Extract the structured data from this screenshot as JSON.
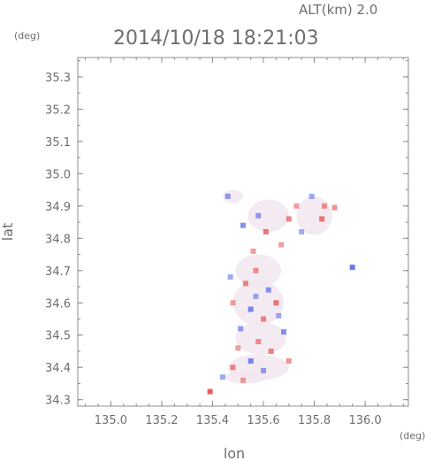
{
  "header": {
    "altitude_label": "ALT(km) 2.0",
    "timestamp": "2014/10/18 18:21:03"
  },
  "chart_data": {
    "type": "heatmap",
    "title": "2014/10/18 18:21:03",
    "xlabel": "lon",
    "ylabel": "lat",
    "x_unit": "(deg)",
    "y_unit": "(deg)",
    "xlim": [
      134.87,
      136.17
    ],
    "ylim": [
      34.28,
      35.36
    ],
    "x_ticks": [
      135.0,
      135.2,
      135.4,
      135.6,
      135.8,
      136.0
    ],
    "x_tick_labels": [
      "135.0",
      "135.2",
      "135.4",
      "135.6",
      "135.8",
      "136.0"
    ],
    "y_ticks": [
      34.3,
      34.4,
      34.5,
      34.6,
      34.7,
      34.8,
      34.9,
      35.0,
      35.1,
      35.2,
      35.3
    ],
    "y_tick_labels": [
      "34.3",
      "34.4",
      "34.5",
      "34.6",
      "34.7",
      "34.8",
      "34.9",
      "35.0",
      "35.1",
      "35.2",
      "35.3"
    ],
    "grid": false,
    "colors": {
      "positive": "#e84848",
      "negative": "#4a5ee8",
      "near_zero": "#f2e8f0",
      "frame": "#8c8c8c",
      "text": "#6e6e6e"
    },
    "series": [
      {
        "points": [
          {
            "lon": 135.39,
            "lat": 34.325,
            "v": 0.9
          },
          {
            "lon": 135.95,
            "lat": 34.71,
            "v": -0.8
          },
          {
            "lon": 135.83,
            "lat": 34.86,
            "v": 0.7
          },
          {
            "lon": 135.7,
            "lat": 34.86,
            "v": 0.6
          },
          {
            "lon": 135.61,
            "lat": 34.82,
            "v": 0.7
          },
          {
            "lon": 135.88,
            "lat": 34.895,
            "v": 0.5
          },
          {
            "lon": 135.46,
            "lat": 34.93,
            "v": -0.5
          },
          {
            "lon": 135.52,
            "lat": 34.84,
            "v": -0.6
          },
          {
            "lon": 135.58,
            "lat": 34.87,
            "v": -0.5
          },
          {
            "lon": 135.75,
            "lat": 34.82,
            "v": -0.4
          },
          {
            "lon": 135.73,
            "lat": 34.9,
            "v": 0.4
          },
          {
            "lon": 135.53,
            "lat": 34.66,
            "v": 0.6
          },
          {
            "lon": 135.57,
            "lat": 34.7,
            "v": 0.5
          },
          {
            "lon": 135.62,
            "lat": 34.64,
            "v": -0.6
          },
          {
            "lon": 135.48,
            "lat": 34.6,
            "v": 0.4
          },
          {
            "lon": 135.55,
            "lat": 34.58,
            "v": -0.7
          },
          {
            "lon": 135.65,
            "lat": 34.6,
            "v": 0.7
          },
          {
            "lon": 135.6,
            "lat": 34.55,
            "v": 0.6
          },
          {
            "lon": 135.51,
            "lat": 34.52,
            "v": -0.5
          },
          {
            "lon": 135.58,
            "lat": 34.48,
            "v": 0.5
          },
          {
            "lon": 135.68,
            "lat": 34.51,
            "v": -0.6
          },
          {
            "lon": 135.63,
            "lat": 34.45,
            "v": 0.6
          },
          {
            "lon": 135.55,
            "lat": 34.42,
            "v": -0.7
          },
          {
            "lon": 135.48,
            "lat": 34.4,
            "v": 0.6
          },
          {
            "lon": 135.6,
            "lat": 34.39,
            "v": -0.5
          },
          {
            "lon": 135.7,
            "lat": 34.42,
            "v": 0.5
          },
          {
            "lon": 135.44,
            "lat": 34.37,
            "v": -0.4
          },
          {
            "lon": 135.52,
            "lat": 34.36,
            "v": 0.4
          },
          {
            "lon": 135.66,
            "lat": 34.56,
            "v": -0.4
          },
          {
            "lon": 135.47,
            "lat": 34.68,
            "v": -0.4
          },
          {
            "lon": 135.56,
            "lat": 34.76,
            "v": 0.4
          },
          {
            "lon": 135.67,
            "lat": 34.78,
            "v": 0.4
          },
          {
            "lon": 135.79,
            "lat": 34.93,
            "v": -0.4
          },
          {
            "lon": 135.84,
            "lat": 34.9,
            "v": 0.5
          },
          {
            "lon": 135.5,
            "lat": 34.46,
            "v": 0.4
          },
          {
            "lon": 135.57,
            "lat": 34.62,
            "v": -0.4
          }
        ]
      }
    ]
  }
}
